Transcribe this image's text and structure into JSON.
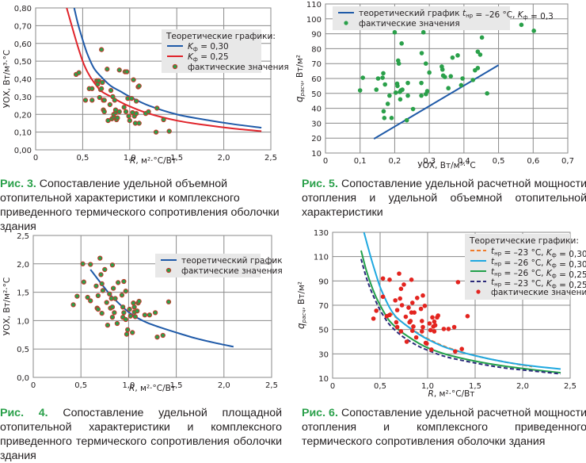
{
  "captions": [
    {
      "num": "Рис. 3.",
      "text": " Сопоставление удельной объемной отопительной характеристики и комплексного приведенного термического сопротивления оболочки здания"
    },
    {
      "num": "Рис. 5.",
      "text": " Сопоставление удельной расчетной мощности отопления и удельной объемной отопительной характеристики"
    },
    {
      "num": "Рис. 4.",
      "text": " Сопоставление удельной площадной отопительной характеристики и комплексного приведенного термического сопротивления оболочки здания"
    },
    {
      "num": "Рис. 6.",
      "text": " Сопоставление удельной расчетной мощности отопления и комплексного приведенного термического сопротивления оболочки здания"
    }
  ],
  "chart_data": [
    {
      "id": "fig3",
      "type": "scatter",
      "title": "Рис. 3",
      "xlabel": "R, м²·°C/Вт",
      "ylabel": "УОХ, Вт/м³·°C",
      "xlim": [
        0,
        2.5
      ],
      "ylim": [
        0,
        0.8
      ],
      "xticks": [
        0,
        0.5,
        1.0,
        1.5,
        2.0,
        2.5
      ],
      "xtick_labels": [
        "0",
        "0,5",
        "1,0",
        "1,5",
        "2,0",
        "2,5"
      ],
      "yticks": [
        0,
        0.1,
        0.2,
        0.3,
        0.4,
        0.5,
        0.6,
        0.7,
        0.8
      ],
      "ytick_labels": [
        "0,00",
        "0,10",
        "0,20",
        "0,30",
        "0,40",
        "0,50",
        "0,60",
        "0,70",
        "0,80"
      ],
      "grid": true,
      "legend": {
        "position": "right",
        "title": "Теоретические графики:",
        "entries": [
          "Kф = 0,30",
          "Kф = 0,25",
          "фактические значения"
        ]
      },
      "series": [
        {
          "name": "Kф = 0,30",
          "kind": "line",
          "color": "#1f5aa8",
          "x": [
            0.41,
            0.45,
            0.5,
            0.55,
            0.62,
            0.7,
            0.8,
            0.9,
            1.0,
            1.2,
            1.5,
            1.8,
            2.1,
            2.4
          ],
          "y": [
            0.8,
            0.71,
            0.62,
            0.54,
            0.46,
            0.41,
            0.36,
            0.33,
            0.3,
            0.25,
            0.2,
            0.17,
            0.145,
            0.125
          ]
        },
        {
          "name": "Kф = 0,25",
          "kind": "line",
          "color": "#e0242b",
          "x": [
            0.33,
            0.4,
            0.45,
            0.5,
            0.55,
            0.62,
            0.7,
            0.8,
            0.9,
            1.0,
            1.2,
            1.5,
            1.8,
            2.1,
            2.4
          ],
          "y": [
            0.8,
            0.67,
            0.58,
            0.5,
            0.44,
            0.38,
            0.33,
            0.3,
            0.27,
            0.245,
            0.205,
            0.165,
            0.14,
            0.12,
            0.105
          ]
        },
        {
          "name": "фактические значения",
          "kind": "points",
          "color": "#2aa04a",
          "edge": "#c0392b",
          "x": [
            0.43,
            0.46,
            0.53,
            0.57,
            0.6,
            0.6,
            0.65,
            0.66,
            0.67,
            0.68,
            0.69,
            0.7,
            0.71,
            0.72,
            0.72,
            0.73,
            0.76,
            0.77,
            0.79,
            0.8,
            0.81,
            0.82,
            0.83,
            0.83,
            0.84,
            0.85,
            0.85,
            0.86,
            0.87,
            0.89,
            0.89,
            0.94,
            0.95,
            0.96,
            0.97,
            0.98,
            0.99,
            1.0,
            1.02,
            1.03,
            1.04,
            1.05,
            1.06,
            1.07,
            1.07,
            1.09,
            1.1,
            1.1,
            1.17,
            1.2,
            1.29,
            1.28,
            1.36,
            1.42,
            0.7,
            0.73
          ],
          "y": [
            0.425,
            0.435,
            0.28,
            0.345,
            0.345,
            0.28,
            0.39,
            0.37,
            0.39,
            0.295,
            0.34,
            0.565,
            0.38,
            0.225,
            0.28,
            0.215,
            0.455,
            0.165,
            0.255,
            0.335,
            0.175,
            0.3,
            0.185,
            0.2,
            0.28,
            0.21,
            0.225,
            0.17,
            0.18,
            0.45,
            0.215,
            0.24,
            0.44,
            0.215,
            0.44,
            0.29,
            0.19,
            0.165,
            0.29,
            0.21,
            0.395,
            0.19,
            0.15,
            0.275,
            0.205,
            0.355,
            0.36,
            0.15,
            0.205,
            0.215,
            0.235,
            0.1,
            0.17,
            0.105,
            0.345,
            0.28
          ]
        }
      ]
    },
    {
      "id": "fig5",
      "type": "scatter",
      "title": "Рис. 5",
      "xlabel": "УОХ, Вт/м³·°C",
      "ylabel": "qрасч, Вт/м²",
      "xlim": [
        0,
        0.7
      ],
      "ylim": [
        10,
        110
      ],
      "xticks": [
        0,
        0.1,
        0.2,
        0.3,
        0.4,
        0.5,
        0.6,
        0.7
      ],
      "xtick_labels": [
        "0",
        "0,1",
        "0,2",
        "0,3",
        "0,4",
        "0,5",
        "0,6",
        "0,7"
      ],
      "yticks": [
        10,
        20,
        30,
        40,
        50,
        60,
        70,
        80,
        90,
        100,
        110
      ],
      "ytick_labels": [
        "10",
        "20",
        "30",
        "40",
        "50",
        "60",
        "70",
        "80",
        "90",
        "100",
        "110"
      ],
      "grid": true,
      "legend": {
        "position": "top-left",
        "entries": [
          "теоретический график tнр = –26 °C, Kф = 0,3",
          "фактические значения"
        ]
      },
      "series": [
        {
          "name": "теоретический график tнр = –26 °C, Kф = 0,3",
          "kind": "line",
          "color": "#1f5aa8",
          "x": [
            0.14,
            0.5
          ],
          "y": [
            19.5,
            69
          ]
        },
        {
          "name": "фактические значения",
          "kind": "points",
          "color": "#2aa04a",
          "x": [
            0.1,
            0.108,
            0.147,
            0.152,
            0.165,
            0.168,
            0.167,
            0.17,
            0.172,
            0.18,
            0.185,
            0.191,
            0.2,
            0.203,
            0.207,
            0.208,
            0.21,
            0.212,
            0.215,
            0.216,
            0.218,
            0.22,
            0.222,
            0.235,
            0.238,
            0.238,
            0.253,
            0.277,
            0.278,
            0.277,
            0.283,
            0.29,
            0.29,
            0.294,
            0.3,
            0.336,
            0.338,
            0.34,
            0.345,
            0.355,
            0.362,
            0.367,
            0.382,
            0.392,
            0.396,
            0.426,
            0.432,
            0.44,
            0.44,
            0.447,
            0.452,
            0.467,
            0.566,
            0.602
          ],
          "y": [
            52,
            60.5,
            52.5,
            60,
            60.5,
            38,
            63.5,
            33.5,
            56,
            43,
            48.5,
            33.5,
            91,
            50.5,
            56.5,
            55,
            72,
            70,
            51,
            46,
            52,
            83.5,
            52.5,
            32,
            57,
            48.5,
            39.5,
            48.5,
            77,
            57,
            91,
            70,
            49.5,
            51.5,
            64,
            68,
            66,
            62,
            61,
            53.5,
            61.5,
            74,
            75.5,
            55.5,
            60,
            59,
            65.5,
            78,
            67,
            76,
            87.5,
            50,
            96,
            92
          ]
        }
      ]
    },
    {
      "id": "fig4",
      "type": "scatter",
      "title": "Рис. 4",
      "xlabel": "R, м²·°C/Вт",
      "ylabel": "УОХ, Вт/м²·°C",
      "xlim": [
        0,
        2.5
      ],
      "ylim": [
        0,
        2.5
      ],
      "xticks": [
        0,
        0.5,
        1.0,
        1.5,
        2.0,
        2.5
      ],
      "xtick_labels": [
        "0",
        "0,5",
        "1,0",
        "1,5",
        "2,0",
        "2,5"
      ],
      "yticks": [
        0,
        0.5,
        1.0,
        1.5,
        2.0,
        2.5
      ],
      "ytick_labels": [
        "0,0",
        "0,5",
        "1,0",
        "1,5",
        "2,0",
        "2,5"
      ],
      "grid": true,
      "legend": {
        "position": "top-right",
        "entries": [
          "теоретический график",
          "фактические значения"
        ]
      },
      "series": [
        {
          "name": "теоретический график",
          "kind": "line",
          "color": "#1f5aa8",
          "x": [
            0.6,
            0.7,
            0.8,
            0.9,
            1.0,
            1.1,
            1.2,
            1.35,
            1.5,
            1.7,
            1.9,
            2.1
          ],
          "y": [
            1.9,
            1.68,
            1.47,
            1.3,
            1.15,
            1.04,
            0.96,
            0.87,
            0.79,
            0.69,
            0.61,
            0.54
          ]
        },
        {
          "name": "фактические значения",
          "kind": "points",
          "color": "#2aa04a",
          "edge": "#c0392b",
          "x": [
            0.42,
            0.46,
            0.52,
            0.53,
            0.57,
            0.6,
            0.6,
            0.66,
            0.67,
            0.68,
            0.68,
            0.7,
            0.71,
            0.72,
            0.72,
            0.73,
            0.75,
            0.77,
            0.78,
            0.8,
            0.81,
            0.82,
            0.83,
            0.83,
            0.83,
            0.84,
            0.85,
            0.86,
            0.88,
            0.89,
            0.93,
            0.94,
            0.94,
            0.95,
            0.95,
            0.97,
            0.97,
            0.98,
            0.99,
            1.01,
            1.02,
            1.04,
            1.05,
            1.06,
            1.06,
            1.07,
            1.09,
            1.1,
            1.11,
            1.17,
            1.22,
            1.28,
            1.3,
            1.36,
            1.42
          ],
          "y": [
            1.28,
            1.43,
            2.0,
            1.68,
            1.41,
            1.99,
            1.35,
            1.61,
            1.22,
            1.44,
            1.2,
            2.1,
            1.81,
            1.65,
            1.13,
            1.53,
            1.9,
            1.32,
            0.92,
            1.47,
            1.22,
            1.39,
            1.24,
            1.98,
            1.06,
            1.57,
            1.14,
            1.39,
            0.95,
            1.67,
            1.45,
            1.24,
            1.06,
            1.69,
            1.14,
            1.02,
            1.52,
            0.76,
            0.84,
            1.2,
            1.08,
            0.79,
            1.31,
            1.15,
            1.24,
            1.07,
            1.17,
            1.31,
            1.34,
            1.1,
            1.1,
            1.14,
            0.71,
            0.74,
            1.33
          ]
        }
      ]
    },
    {
      "id": "fig6",
      "type": "scatter",
      "title": "Рис. 6",
      "xlabel": "R, м²·°C/Вт",
      "ylabel": "qрасч, Вт/м²",
      "xlim": [
        0,
        2.5
      ],
      "ylim": [
        10,
        130
      ],
      "xticks": [
        0,
        0.5,
        1.0,
        1.5,
        2.0,
        2.5
      ],
      "xtick_labels": [
        "0",
        "0,5",
        "1,0",
        "1,5",
        "2,0",
        "2,5"
      ],
      "yticks": [
        10,
        30,
        50,
        70,
        90,
        110,
        130
      ],
      "ytick_labels": [
        "10",
        "30",
        "50",
        "70",
        "90",
        "110",
        "130"
      ],
      "grid": true,
      "legend": {
        "position": "top-right",
        "title": "Теоретические графики:",
        "entries": [
          "tнр = –23 °C, Kф = 0,30",
          "tнр = –26 °C, Kф = 0,30",
          "tнр = –26 °C, Kф = 0,25",
          "tнр = –23 °C, Kф = 0,25",
          "фактические значения"
        ]
      },
      "series": [
        {
          "name": "tнр = –23 °C, Kф = 0,30",
          "kind": "line",
          "dash": true,
          "color": "#f07a2a",
          "x": [
            0.6,
            0.7,
            0.8,
            0.9,
            1.0,
            1.2,
            1.5,
            1.8,
            2.1
          ],
          "y": [
            64,
            58,
            52,
            47,
            42.5,
            35.5,
            28.5,
            23.5,
            19.5
          ]
        },
        {
          "name": "tнр = –26 °C, Kф = 0,30",
          "kind": "line",
          "color": "#1fa8e0",
          "x": [
            0.33,
            0.4,
            0.45,
            0.5,
            0.55,
            0.6,
            0.65,
            0.7,
            0.8,
            0.9,
            1.0,
            1.2,
            1.5,
            1.8,
            2.1,
            2.4
          ],
          "y": [
            130,
            110,
            97,
            85,
            76,
            68,
            62,
            58,
            52,
            46.5,
            42,
            35,
            28.5,
            23.5,
            20,
            17.5
          ]
        },
        {
          "name": "tнр = –26 °C, Kф = 0,25",
          "kind": "line",
          "color": "#22a04a",
          "x": [
            0.3,
            0.35,
            0.4,
            0.45,
            0.5,
            0.55,
            0.6,
            0.7,
            0.8,
            0.9,
            1.0,
            1.2,
            1.5,
            1.8,
            2.1,
            2.4
          ],
          "y": [
            115,
            100,
            88,
            78,
            70,
            63,
            57,
            49.5,
            44,
            39,
            35,
            29.5,
            24,
            20,
            17,
            14.5
          ]
        },
        {
          "name": "tнр = –23 °C, Kф = 0,25",
          "kind": "line",
          "dash": true,
          "color": "#2b2a7a",
          "x": [
            0.3,
            0.35,
            0.4,
            0.45,
            0.5,
            0.55,
            0.6,
            0.7,
            0.8,
            0.9,
            1.0,
            1.2,
            1.5,
            1.8,
            2.1,
            2.4
          ],
          "y": [
            108,
            94,
            83,
            74,
            66,
            59.5,
            54,
            46.5,
            41,
            36.5,
            33,
            27.5,
            22.5,
            18.5,
            16,
            13.5
          ]
        },
        {
          "name": "фактические значения",
          "kind": "points",
          "color": "#e3241f",
          "x": [
            0.43,
            0.46,
            0.53,
            0.53,
            0.57,
            0.6,
            0.6,
            0.66,
            0.67,
            0.68,
            0.68,
            0.7,
            0.71,
            0.72,
            0.72,
            0.73,
            0.75,
            0.77,
            0.78,
            0.8,
            0.81,
            0.82,
            0.83,
            0.83,
            0.84,
            0.84,
            0.85,
            0.86,
            0.88,
            0.89,
            0.93,
            0.94,
            0.94,
            0.95,
            0.95,
            0.97,
            0.98,
            0.99,
            1.02,
            1.03,
            1.04,
            1.05,
            1.06,
            1.07,
            1.07,
            1.08,
            1.1,
            1.11,
            1.17,
            1.22,
            1.28,
            1.29,
            1.32,
            1.36,
            1.42
          ],
          "y": [
            59,
            65.5,
            92,
            77,
            61,
            91,
            62,
            74,
            56,
            66,
            52,
            96,
            75.5,
            83.5,
            48.5,
            70,
            87,
            60.5,
            40,
            68,
            56,
            57,
            91,
            64,
            49,
            72,
            52.5,
            64,
            43.5,
            76,
            67,
            57,
            48.5,
            78,
            52,
            69.5,
            39,
            38.5,
            55,
            49.5,
            33.5,
            60,
            52.5,
            56.5,
            48.5,
            53.5,
            60,
            61.5,
            50.5,
            50.5,
            52,
            32,
            89,
            34,
            61
          ]
        }
      ]
    }
  ]
}
